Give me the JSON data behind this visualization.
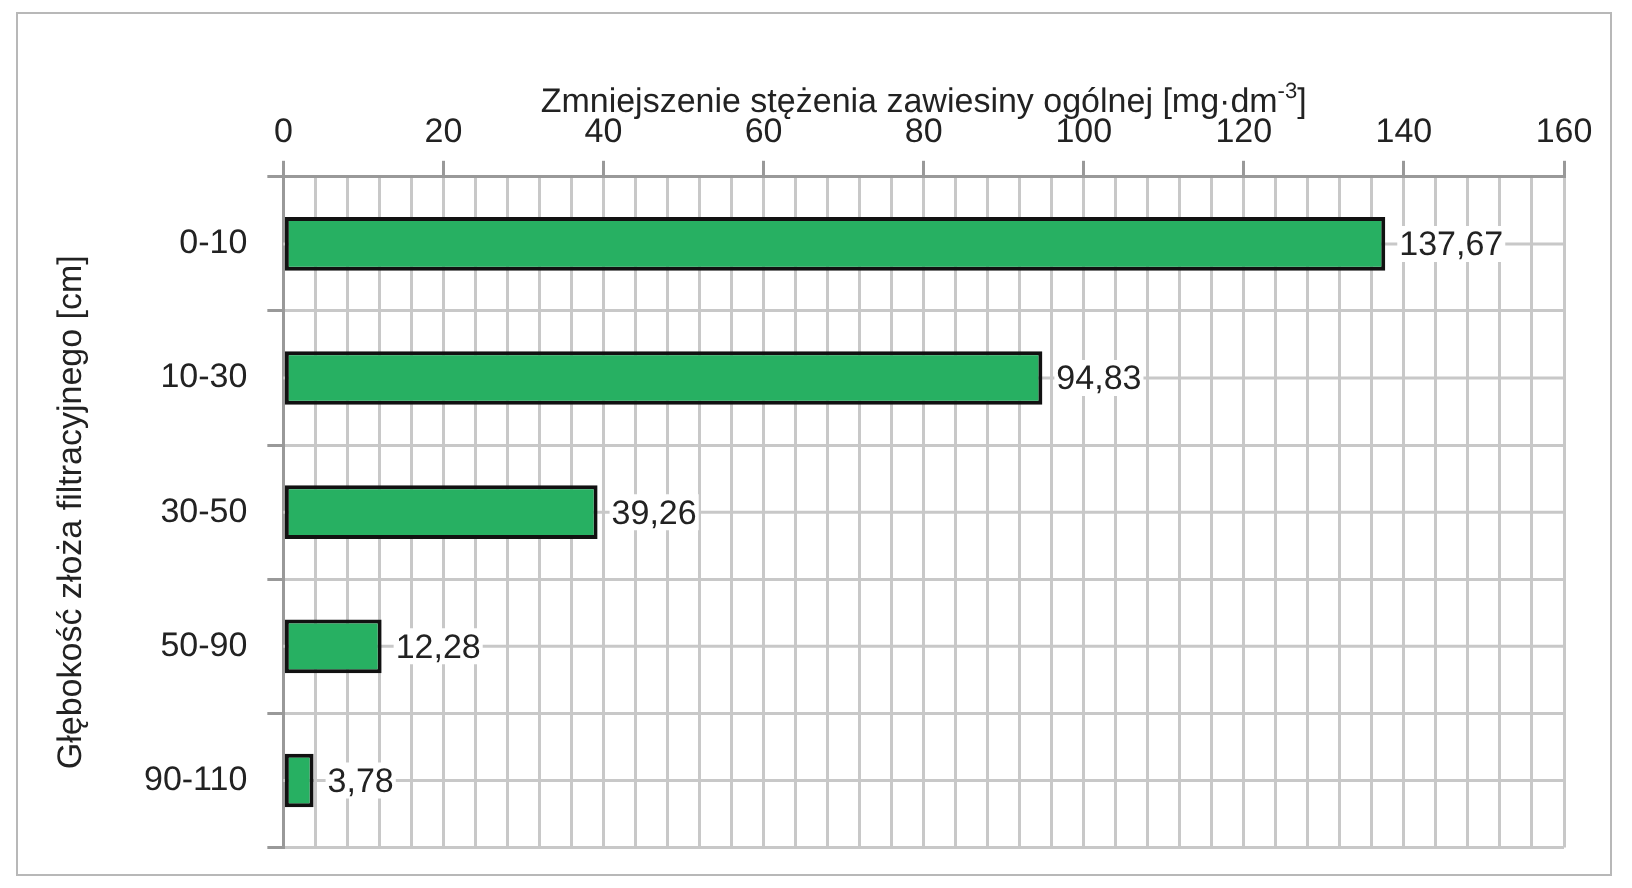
{
  "chart_data": {
    "type": "bar",
    "orientation": "horizontal",
    "xlabel": "Zmniejszenie stężenia zawiesiny ogólnej [mg·dm$^{-3}$]",
    "ylabel": "Głębokość złoża filtracyjnego [cm]",
    "categories": [
      "0-10",
      "10-30",
      "30-50",
      "50-90",
      "90-110"
    ],
    "values": [
      137.67,
      94.83,
      39.26,
      12.28,
      3.78
    ],
    "value_labels": [
      "137,67",
      "94,83",
      "39,26",
      "12,28",
      "3,78"
    ],
    "color": "#27b062",
    "xlim": [
      0,
      160
    ],
    "xticks": [
      0,
      {
        "value": 4,
        "label": null
      },
      {
        "value": 8,
        "label": null
      },
      {
        "value": 12,
        "label": null
      },
      {
        "value": 16,
        "label": null
      },
      20,
      {
        "value": 24,
        "label": null
      },
      {
        "value": 28,
        "label": null
      },
      {
        "value": 32,
        "label": null
      },
      {
        "value": 36,
        "label": null
      },
      40,
      {
        "value": 44,
        "label": null
      },
      {
        "value": 48,
        "label": null
      },
      {
        "value": 52,
        "label": null
      },
      {
        "value": 56,
        "label": null
      },
      60,
      {
        "value": 64,
        "label": null
      },
      {
        "value": 68,
        "label": null
      },
      {
        "value": 72,
        "label": null
      },
      {
        "value": 76,
        "label": null
      },
      80,
      {
        "value": 84,
        "label": null
      },
      {
        "value": 88,
        "label": null
      },
      {
        "value": 92,
        "label": null
      },
      {
        "value": 96,
        "label": null
      },
      100,
      {
        "value": 104,
        "label": null
      },
      {
        "value": 108,
        "label": null
      },
      {
        "value": 112,
        "label": null
      },
      {
        "value": 116,
        "label": null
      },
      120,
      {
        "value": 124,
        "label": null
      },
      {
        "value": 128,
        "label": null
      },
      {
        "value": 132,
        "label": null
      },
      {
        "value": 136,
        "label": null
      },
      140,
      {
        "value": 144,
        "label": null
      },
      {
        "value": 148,
        "label": null
      },
      {
        "value": 152,
        "label": null
      },
      {
        "value": 156,
        "label": null
      },
      160
    ],
    "grid": true,
    "legend": false
  }
}
